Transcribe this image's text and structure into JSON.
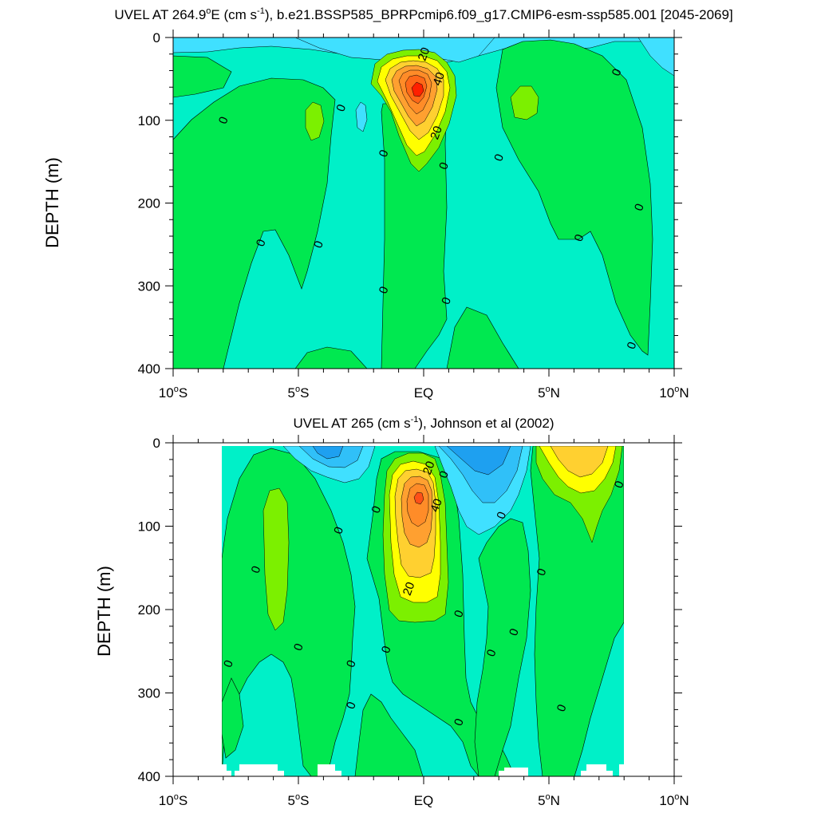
{
  "chart_data": [
    {
      "type": "contour",
      "title": "UVEL AT 264.9°E (cm s-1), b.e21.BSSP585_BPRPcmip6.f09_g17.CMIP6-esm-ssp585.001 [2045-2069]",
      "title_parts": {
        "pre": "UVEL AT 264.9",
        "sup1": "o",
        "mid": "E (cm s",
        "sup2": "-1",
        "post": "), b.e21.BSSP585_BPRPcmip6.f09_g17.CMIP6-esm-ssp585.001 [2045-2069]"
      },
      "xlabel": "",
      "ylabel": "DEPTH (m)",
      "xlim": [
        -10,
        10
      ],
      "ylim": [
        400,
        0
      ],
      "xticks": [
        {
          "value": -10,
          "num": "10",
          "sup": "o",
          "hem": "S"
        },
        {
          "value": -5,
          "num": "5",
          "sup": "o",
          "hem": "S"
        },
        {
          "value": 0,
          "num": "EQ",
          "sup": "",
          "hem": ""
        },
        {
          "value": 5,
          "num": "5",
          "sup": "o",
          "hem": "N"
        },
        {
          "value": 10,
          "num": "10",
          "sup": "o",
          "hem": "N"
        }
      ],
      "yticks": [
        "0",
        "100",
        "200",
        "300",
        "400"
      ],
      "contour_labels": [
        {
          "text": "40",
          "lon": 0.6,
          "depth": 50
        },
        {
          "text": "20",
          "lon": 0.5,
          "depth": 115
        },
        {
          "text": "20",
          "lon": 0.0,
          "depth": 20
        },
        {
          "text": "0",
          "lon": -8.0,
          "depth": 100
        },
        {
          "text": "0",
          "lon": -3.3,
          "depth": 85
        },
        {
          "text": "0",
          "lon": -1.6,
          "depth": 140
        },
        {
          "text": "0",
          "lon": 0.8,
          "depth": 155
        },
        {
          "text": "0",
          "lon": 3.0,
          "depth": 145
        },
        {
          "text": "0",
          "lon": 7.7,
          "depth": 42
        },
        {
          "text": "0",
          "lon": 8.6,
          "depth": 205
        },
        {
          "text": "0",
          "lon": -6.5,
          "depth": 248
        },
        {
          "text": "0",
          "lon": -4.2,
          "depth": 250
        },
        {
          "text": "0",
          "lon": 6.2,
          "depth": 242
        },
        {
          "text": "0",
          "lon": -1.6,
          "depth": 305
        },
        {
          "text": "0",
          "lon": 0.9,
          "depth": 318
        },
        {
          "text": "0",
          "lon": 8.3,
          "depth": 372
        }
      ],
      "max_velocity_core": {
        "lon": 0.0,
        "depth": 65,
        "approx_max": 55
      }
    },
    {
      "type": "contour",
      "title": "UVEL AT 265 (cm s-1), Johnson et al (2002)",
      "title_parts": {
        "pre": "UVEL AT 265 (cm s",
        "sup1": "-1",
        "mid": "), Johnson et al (2002)",
        "sup2": "",
        "post": ""
      },
      "xlabel": "",
      "ylabel": "DEPTH (m)",
      "xlim": [
        -10,
        10
      ],
      "ylim": [
        400,
        0
      ],
      "xticks": [
        {
          "value": -10,
          "num": "10",
          "sup": "o",
          "hem": "S"
        },
        {
          "value": -5,
          "num": "5",
          "sup": "o",
          "hem": "S"
        },
        {
          "value": 0,
          "num": "EQ",
          "sup": "",
          "hem": ""
        },
        {
          "value": 5,
          "num": "5",
          "sup": "o",
          "hem": "N"
        },
        {
          "value": 10,
          "num": "10",
          "sup": "o",
          "hem": "N"
        }
      ],
      "yticks": [
        "0",
        "100",
        "200",
        "300",
        "400"
      ],
      "data_lon_range": [
        -8,
        8
      ],
      "contour_labels": [
        {
          "text": "20",
          "lon": 0.2,
          "depth": 30
        },
        {
          "text": "40",
          "lon": 0.5,
          "depth": 75
        },
        {
          "text": "20",
          "lon": -0.6,
          "depth": 175
        },
        {
          "text": "0",
          "lon": 0.8,
          "depth": 38
        },
        {
          "text": "0",
          "lon": 7.8,
          "depth": 50
        },
        {
          "text": "0",
          "lon": -1.9,
          "depth": 80
        },
        {
          "text": "0",
          "lon": -3.4,
          "depth": 105
        },
        {
          "text": "0",
          "lon": 3.1,
          "depth": 87
        },
        {
          "text": "0",
          "lon": -6.7,
          "depth": 152
        },
        {
          "text": "0",
          "lon": 4.7,
          "depth": 155
        },
        {
          "text": "0",
          "lon": 1.4,
          "depth": 205
        },
        {
          "text": "0",
          "lon": 3.6,
          "depth": 227
        },
        {
          "text": "0",
          "lon": -5.0,
          "depth": 245
        },
        {
          "text": "0",
          "lon": -1.5,
          "depth": 248
        },
        {
          "text": "0",
          "lon": 2.7,
          "depth": 252
        },
        {
          "text": "0",
          "lon": -7.8,
          "depth": 265
        },
        {
          "text": "0",
          "lon": -2.9,
          "depth": 265
        },
        {
          "text": "0",
          "lon": -2.9,
          "depth": 315
        },
        {
          "text": "0",
          "lon": 5.5,
          "depth": 318
        },
        {
          "text": "0",
          "lon": 1.4,
          "depth": 335
        }
      ],
      "max_velocity_core": {
        "lon": -0.2,
        "depth": 65,
        "approx_max": 45
      }
    }
  ],
  "colors": {
    "negative_strong": "#1ea0f0",
    "negative": "#30c0f8",
    "negative_weak": "#40e0ff",
    "near_zero_neg": "#00f0c8",
    "near_zero_pos": "#00e850",
    "pos_weak": "#7cf000",
    "pos_20": "#ffff00",
    "pos_30": "#ffd030",
    "pos_40": "#ffa030",
    "pos_50": "#ff6818",
    "pos_max": "#ff2000"
  }
}
